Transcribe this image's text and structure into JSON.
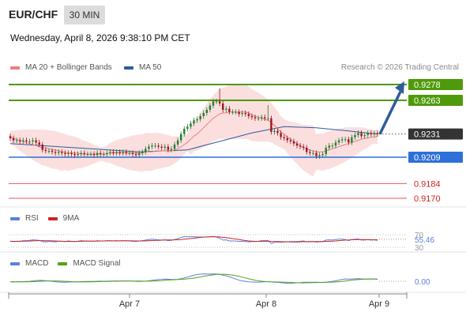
{
  "header": {
    "pair": "EUR/CHF",
    "interval": "30 MIN",
    "datetime": "Wednesday, April 8, 2026 9:38:10 PM CET"
  },
  "legend": {
    "ma20_label": "MA 20 + Bollinger Bands",
    "ma50_label": "MA 50",
    "credit": "Research © 2026 Trading Central",
    "rsi_label": "RSI",
    "rsi_ma_label": "9MA",
    "macd_label": "MACD",
    "macd_signal_label": "MACD Signal"
  },
  "colors": {
    "ma20": "#f07c7c",
    "ma50": "#2f5b9c",
    "bands_fill": "#f9d4d4",
    "resistance": "#4f9a0a",
    "support": "#2f6fd8",
    "level_red": "#e05a5a",
    "current_price_box": "#333333",
    "candle_up": "#1e7f2f",
    "candle_down": "#9a1620",
    "arrow": "#2f5b9c",
    "rsi_line": "#5b7fe0",
    "rsi_ma": "#cc2222",
    "macd_line": "#5b7fe0",
    "macd_signal": "#55a012"
  },
  "chart_data": [
    {
      "type": "candlestick",
      "x_tick_labels": [
        "Apr 7",
        "Apr 8",
        "Apr 9"
      ],
      "price_levels": [
        {
          "value": 0.9278,
          "label": "0.9278",
          "kind": "resistance"
        },
        {
          "value": 0.9263,
          "label": "0.9263",
          "kind": "resistance"
        },
        {
          "value": 0.9231,
          "label": "0.9231",
          "kind": "current"
        },
        {
          "value": 0.9209,
          "label": "0.9209",
          "kind": "support"
        },
        {
          "value": 0.9184,
          "label": "0.9184",
          "kind": "level"
        },
        {
          "value": 0.917,
          "label": "0.9170",
          "kind": "level"
        }
      ],
      "close": [
        0.9227,
        0.9225,
        0.9225,
        0.9224,
        0.9225,
        0.9224,
        0.9224,
        0.9225,
        0.9223,
        0.9221,
        0.9216,
        0.9215,
        0.9215,
        0.9214,
        0.9213,
        0.9214,
        0.9213,
        0.9212,
        0.9213,
        0.9212,
        0.9211,
        0.9212,
        0.9213,
        0.9212,
        0.9212,
        0.9212,
        0.9211,
        0.9213,
        0.9212,
        0.9212,
        0.9213,
        0.9214,
        0.9213,
        0.9214,
        0.9213,
        0.9214,
        0.9213,
        0.9213,
        0.9212,
        0.9211,
        0.9213,
        0.9214,
        0.9217,
        0.9219,
        0.922,
        0.922,
        0.9219,
        0.9218,
        0.9219,
        0.9216,
        0.9217,
        0.9221,
        0.9225,
        0.9231,
        0.9236,
        0.9238,
        0.9241,
        0.9244,
        0.9245,
        0.9248,
        0.9251,
        0.9254,
        0.9258,
        0.9262,
        0.9262,
        0.926,
        0.9254,
        0.9255,
        0.9252,
        0.9252,
        0.9252,
        0.925,
        0.9251,
        0.925,
        0.9248,
        0.9247,
        0.9246,
        0.9246,
        0.9247,
        0.9246,
        0.9246,
        0.9233,
        0.9234,
        0.9232,
        0.9228,
        0.9227,
        0.9225,
        0.9224,
        0.9222,
        0.922,
        0.9219,
        0.9218,
        0.9214,
        0.9213,
        0.9213,
        0.921,
        0.9211,
        0.9212,
        0.9218,
        0.922,
        0.922,
        0.9223,
        0.9225,
        0.9226,
        0.9226,
        0.9223,
        0.9228,
        0.923,
        0.9232,
        0.9229,
        0.923,
        0.9232,
        0.9231,
        0.9232,
        0.9231
      ],
      "ma20": [
        0.9228,
        0.9227,
        0.9226,
        0.9225,
        0.9224,
        0.9223,
        0.9222,
        0.9221,
        0.922,
        0.9219,
        0.9218,
        0.9218,
        0.9217,
        0.9216,
        0.9216,
        0.9215,
        0.9214,
        0.9214,
        0.9213,
        0.9213,
        0.9213,
        0.9213,
        0.9212,
        0.9212,
        0.9212,
        0.9212,
        0.9212,
        0.9212,
        0.9212,
        0.9212,
        0.9212,
        0.9213,
        0.9213,
        0.9213,
        0.9213,
        0.9213,
        0.9213,
        0.9213,
        0.9213,
        0.9213,
        0.9213,
        0.9213,
        0.9214,
        0.9214,
        0.9214,
        0.9215,
        0.9215,
        0.9215,
        0.9215,
        0.9215,
        0.9215,
        0.9216,
        0.9217,
        0.9219,
        0.9221,
        0.9223,
        0.9226,
        0.9229,
        0.9231,
        0.9234,
        0.9237,
        0.924,
        0.9243,
        0.9246,
        0.9248,
        0.925,
        0.9251,
        0.9251,
        0.9252,
        0.9252,
        0.9252,
        0.9252,
        0.9252,
        0.9252,
        0.9251,
        0.9249,
        0.9248,
        0.9247,
        0.9246,
        0.9245,
        0.9244,
        0.9242,
        0.9239,
        0.9236,
        0.9233,
        0.9231,
        0.9228,
        0.9226,
        0.9224,
        0.9222,
        0.922,
        0.9218,
        0.9217,
        0.9216,
        0.9215,
        0.9214,
        0.9214,
        0.9214,
        0.9215,
        0.9216,
        0.9217,
        0.9218,
        0.9219,
        0.922,
        0.9221,
        0.9222,
        0.9223,
        0.9224,
        0.9225,
        0.9226,
        0.9227,
        0.9227,
        0.9228,
        0.9228,
        0.9229
      ],
      "ma50_points": [
        [
          0,
          0.9222
        ],
        [
          20,
          0.9218
        ],
        [
          40,
          0.9214
        ],
        [
          55,
          0.9216
        ],
        [
          65,
          0.9224
        ],
        [
          75,
          0.9232
        ],
        [
          85,
          0.9238
        ],
        [
          95,
          0.9237
        ],
        [
          105,
          0.9234
        ],
        [
          114,
          0.9231
        ]
      ],
      "rsi": {
        "ticks": [
          70,
          30
        ],
        "last": 55.46
      },
      "macd": {
        "last": 0.0
      }
    }
  ]
}
